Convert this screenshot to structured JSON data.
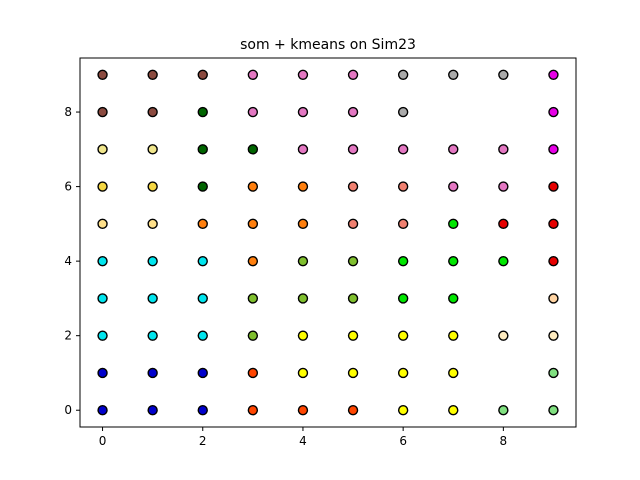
{
  "chart_data": {
    "type": "scatter",
    "title": "som + kmeans on Sim23",
    "xlabel": "",
    "ylabel": "",
    "xlim": [
      -0.45,
      9.45
    ],
    "ylim": [
      -0.45,
      9.45
    ],
    "xticks": [
      0,
      2,
      4,
      6,
      8
    ],
    "yticks": [
      0,
      2,
      4,
      6,
      8
    ],
    "grid": false,
    "legend": "none",
    "cluster_colors": {
      "brown": "#8b4a3f",
      "pink": "#e377c2",
      "gray": "#aaaaaa",
      "magenta": "#e600e6",
      "darkgreen": "#006400",
      "khaki": "#f0e68c",
      "gold": "#f5d742",
      "lightyellow": "#ffe08a",
      "orange": "#ff7f0e",
      "salmon": "#f08070",
      "red": "#e60000",
      "lime": "#00e600",
      "cyan": "#00e5ee",
      "olive": "#7fbf2e",
      "peach": "#ffd4a3",
      "yellow": "#ffff00",
      "lightgreen": "#80e080",
      "blue": "#0000cc",
      "orangered": "#ff4500",
      "cream": "#ffecc0"
    },
    "grid_colors": [
      [
        "blue",
        "blue",
        "blue",
        "orangered",
        "orangered",
        "orangered",
        "yellow",
        "yellow",
        "lightgreen",
        "lightgreen"
      ],
      [
        "blue",
        "blue",
        "blue",
        "orangered",
        "yellow",
        "yellow",
        "yellow",
        "yellow",
        null,
        "lightgreen"
      ],
      [
        "cyan",
        "cyan",
        "cyan",
        "olive",
        "yellow",
        "yellow",
        "yellow",
        "yellow",
        "cream",
        "cream"
      ],
      [
        "cyan",
        "cyan",
        "cyan",
        "olive",
        "olive",
        "olive",
        "lime",
        "lime",
        null,
        "peach"
      ],
      [
        "cyan",
        "cyan",
        "cyan",
        "orange",
        "olive",
        "olive",
        "lime",
        "lime",
        "lime",
        "red"
      ],
      [
        "lightyellow",
        "lightyellow",
        "orange",
        "orange",
        "orange",
        "salmon",
        "salmon",
        "lime",
        "red",
        "red"
      ],
      [
        "gold",
        "gold",
        "darkgreen",
        "orange",
        "orange",
        "salmon",
        "salmon",
        "pink",
        "pink",
        "red"
      ],
      [
        "khaki",
        "khaki",
        "darkgreen",
        "darkgreen",
        "pink",
        "pink",
        "pink",
        "pink",
        "pink",
        "magenta"
      ],
      [
        "brown",
        "brown",
        "darkgreen",
        "pink",
        "pink",
        "pink",
        "gray",
        null,
        null,
        "magenta"
      ],
      [
        "brown",
        "brown",
        "brown",
        "pink",
        "pink",
        "pink",
        "gray",
        "gray",
        "gray",
        "magenta"
      ]
    ]
  }
}
